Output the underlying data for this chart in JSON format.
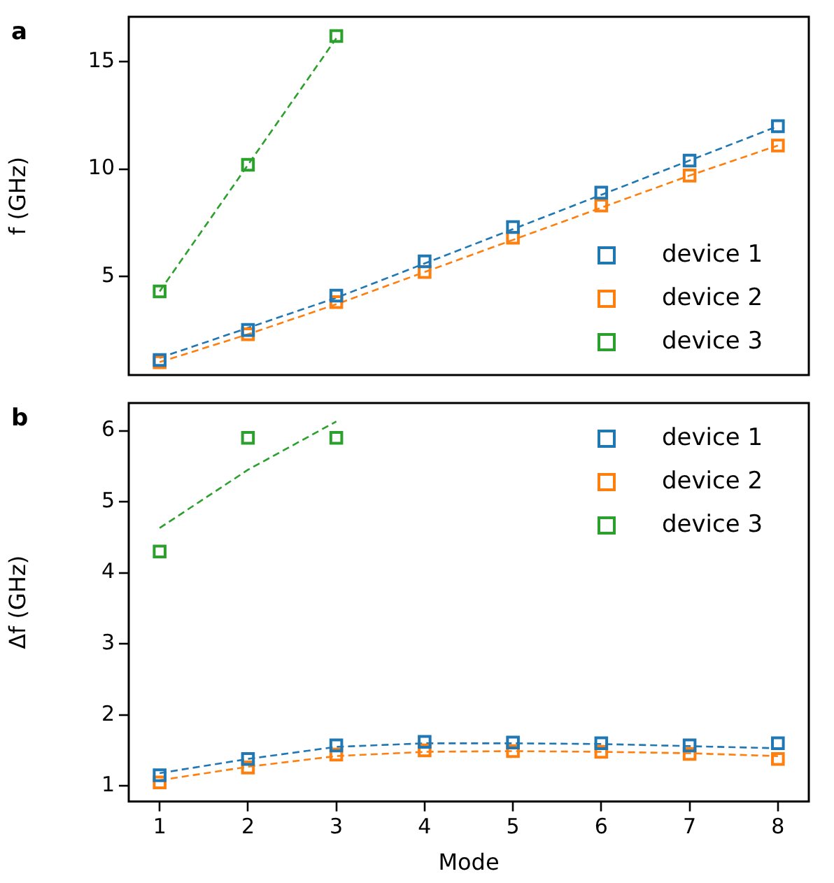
{
  "chart_data": [
    {
      "type": "scatter",
      "title": "a",
      "ylabel": "f (GHz)",
      "xlim": [
        0.65,
        8.35
      ],
      "xticks": [
        1,
        2,
        3,
        4,
        5,
        6,
        7,
        8
      ],
      "ylim": [
        0.4,
        17.1
      ],
      "yticks": [
        5,
        10,
        15
      ],
      "tick_labels": "y",
      "grid": false,
      "legend": "bottom right",
      "marker": "square",
      "series": [
        {
          "name": "device 1",
          "color": "#1f77b4",
          "x": [
            1,
            2,
            3,
            4,
            5,
            6,
            7,
            8
          ],
          "values": [
            1.1,
            2.5,
            4.1,
            5.7,
            7.3,
            8.9,
            10.4,
            12.0
          ]
        },
        {
          "name": "device 2",
          "color": "#ff7f0e",
          "x": [
            1,
            2,
            3,
            4,
            5,
            6,
            7,
            8
          ],
          "values": [
            1.0,
            2.3,
            3.8,
            5.2,
            6.8,
            8.3,
            9.7,
            11.1
          ]
        },
        {
          "name": "device 3",
          "color": "#2ca02c",
          "x": [
            1,
            2,
            3
          ],
          "values": [
            4.3,
            10.2,
            16.2
          ]
        },
        {
          "type": "line",
          "color": "#1f77b4",
          "marker": "none",
          "line_style": "dashed",
          "x": [
            1,
            2,
            3,
            4,
            5,
            6,
            7,
            8
          ],
          "values": [
            1.2,
            2.6,
            4.0,
            5.6,
            7.2,
            8.8,
            10.4,
            12.0
          ]
        },
        {
          "type": "line",
          "color": "#ff7f0e",
          "marker": "none",
          "line_style": "dashed",
          "x": [
            1,
            2,
            3,
            4,
            5,
            6,
            7,
            8
          ],
          "values": [
            1.0,
            2.3,
            3.7,
            5.2,
            6.7,
            8.2,
            9.7,
            11.1
          ]
        },
        {
          "type": "line",
          "color": "#2ca02c",
          "marker": "none",
          "line_style": "dashed",
          "x": [
            1,
            2,
            3
          ],
          "values": [
            4.3,
            10.2,
            16.1
          ]
        }
      ]
    },
    {
      "type": "scatter",
      "title": "b",
      "xlabel": "Mode",
      "ylabel": "Δf (GHz)",
      "xlim": [
        0.65,
        8.35
      ],
      "xticks": [
        1,
        2,
        3,
        4,
        5,
        6,
        7,
        8
      ],
      "ylim": [
        0.78,
        6.39
      ],
      "yticks": [
        1,
        2,
        3,
        4,
        5,
        6
      ],
      "grid": false,
      "legend": "top right",
      "marker": "square",
      "series": [
        {
          "name": "device 1",
          "color": "#1f77b4",
          "x": [
            1,
            2,
            3,
            4,
            5,
            6,
            7,
            8
          ],
          "values": [
            1.15,
            1.38,
            1.57,
            1.62,
            1.61,
            1.6,
            1.57,
            1.6
          ]
        },
        {
          "name": "device 2",
          "color": "#ff7f0e",
          "x": [
            1,
            2,
            3,
            4,
            5,
            6,
            7,
            8
          ],
          "values": [
            1.05,
            1.26,
            1.44,
            1.5,
            1.49,
            1.48,
            1.45,
            1.38
          ]
        },
        {
          "name": "device 3",
          "color": "#2ca02c",
          "x": [
            1,
            2,
            3
          ],
          "values": [
            4.3,
            5.9,
            5.9
          ]
        },
        {
          "type": "line",
          "color": "#1f77b4",
          "marker": "none",
          "line_style": "dashed",
          "x": [
            1,
            2,
            3,
            4,
            5,
            6,
            7,
            8
          ],
          "values": [
            1.18,
            1.38,
            1.55,
            1.6,
            1.6,
            1.59,
            1.56,
            1.53
          ]
        },
        {
          "type": "line",
          "color": "#ff7f0e",
          "marker": "none",
          "line_style": "dashed",
          "x": [
            1,
            2,
            3,
            4,
            5,
            6,
            7,
            8
          ],
          "values": [
            1.08,
            1.27,
            1.42,
            1.48,
            1.49,
            1.48,
            1.46,
            1.42
          ]
        },
        {
          "type": "line",
          "color": "#2ca02c",
          "marker": "none",
          "line_style": "dashed",
          "x": [
            1,
            2,
            3
          ],
          "values": [
            4.63,
            5.45,
            6.13
          ]
        }
      ]
    }
  ]
}
